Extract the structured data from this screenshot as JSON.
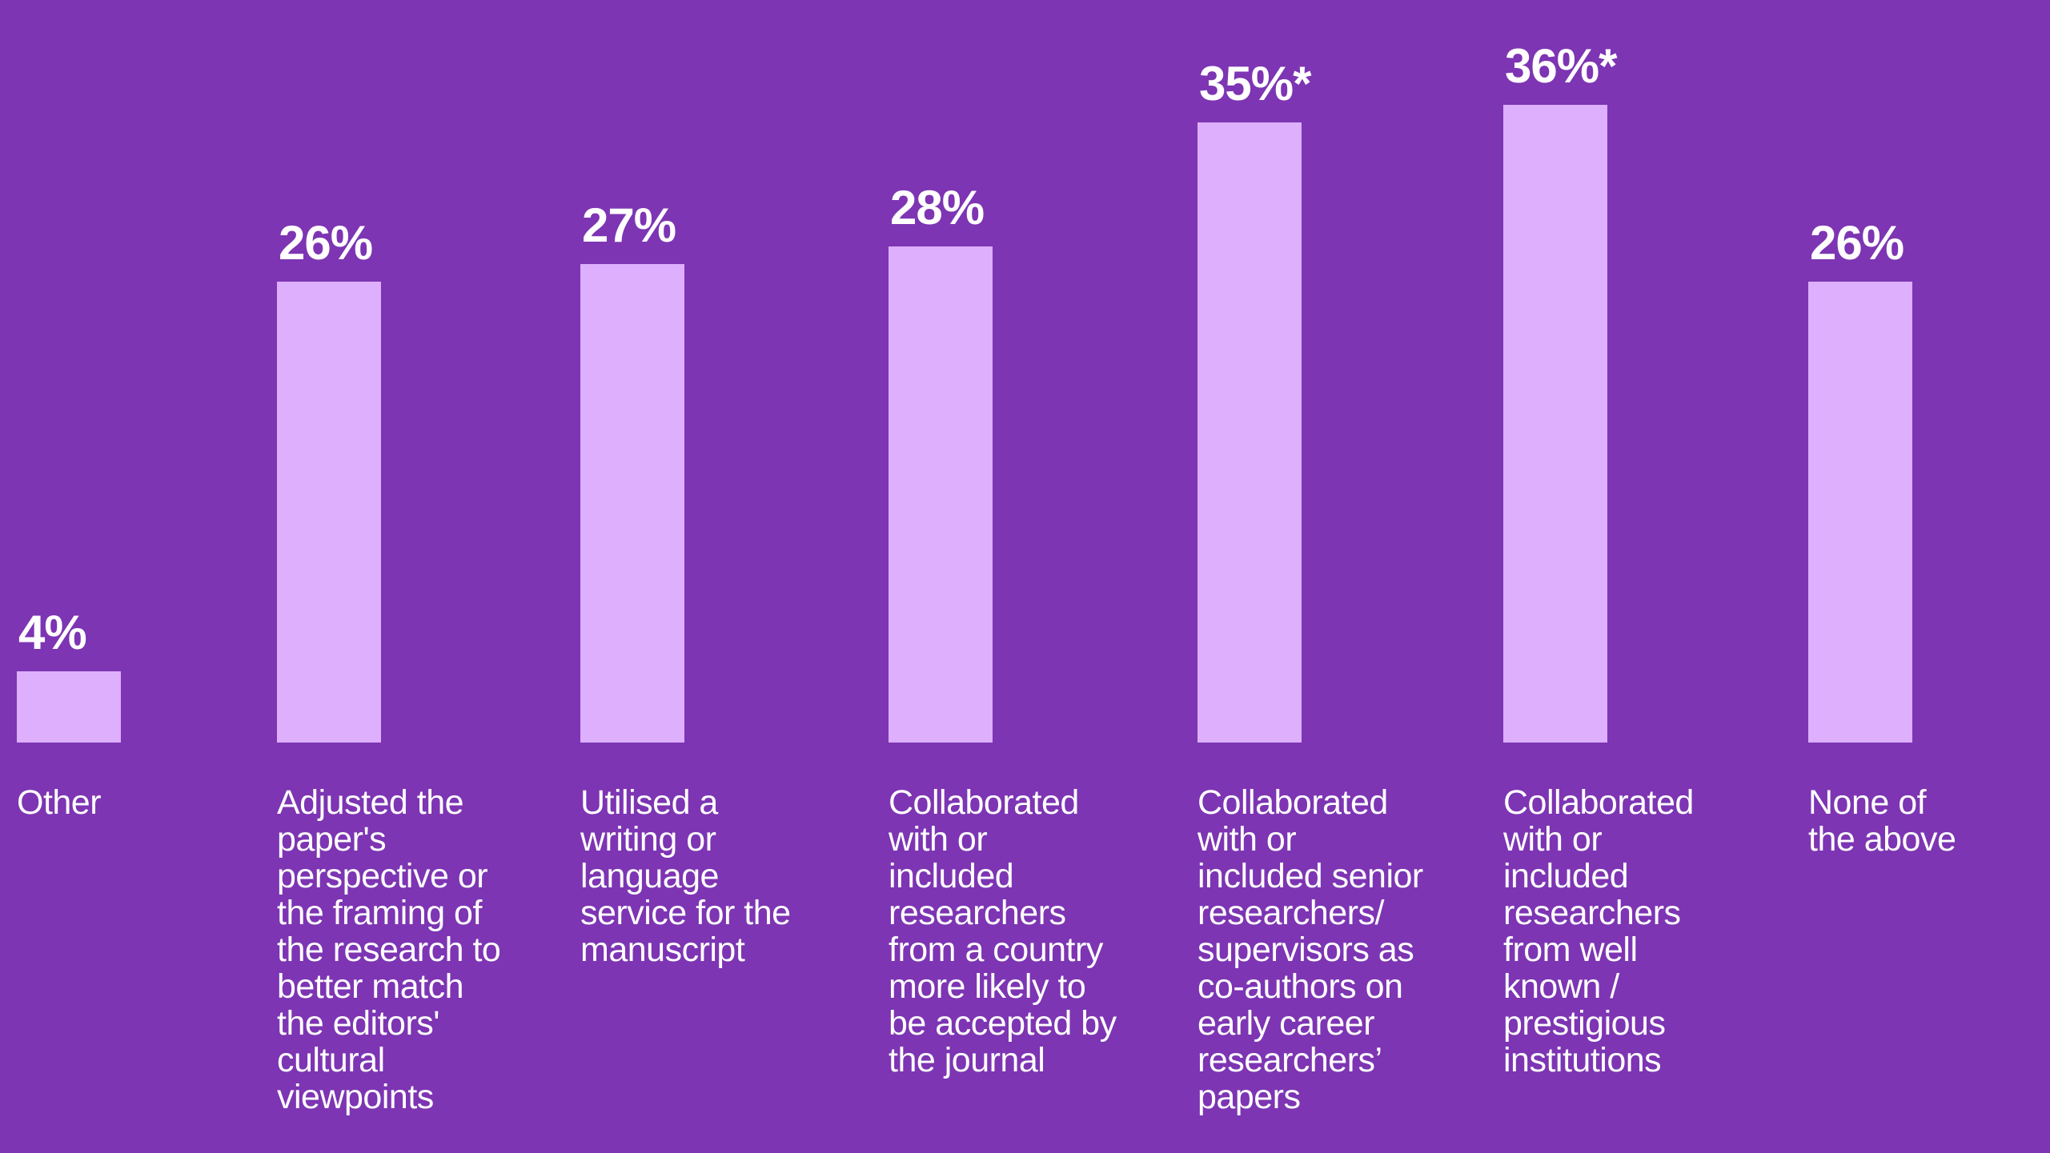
{
  "chart_data": {
    "type": "bar",
    "title": "",
    "xlabel": "",
    "ylabel": "",
    "ylim": [
      0,
      36
    ],
    "grid": false,
    "colors": {
      "background": "#7d35b3",
      "bar": "#ddaffc",
      "text": "#ffffff"
    },
    "categories": [
      [
        "Other"
      ],
      [
        "Adjusted the",
        "paper's",
        "perspective or",
        "the framing of",
        "the research to",
        "better match",
        "the editors'",
        "cultural",
        "viewpoints"
      ],
      [
        "Utilised a",
        "writing or",
        "language",
        "service for the",
        "manuscript"
      ],
      [
        "Collaborated",
        "with or",
        "included",
        "researchers",
        "from a country",
        "more likely to",
        "be accepted by",
        "the journal"
      ],
      [
        "Collaborated",
        "with or",
        "included senior",
        "researchers/",
        "supervisors as",
        "co-authors on",
        "early career",
        "researchers’",
        "papers"
      ],
      [
        "Collaborated",
        "with or",
        "included",
        "researchers",
        "from well",
        "known /",
        "prestigious",
        "institutions"
      ],
      [
        "None of",
        "the above"
      ]
    ],
    "values": [
      4,
      26,
      27,
      28,
      35,
      36,
      26
    ],
    "data_labels": [
      "4%",
      "26%",
      "27%",
      "28%",
      "35%*",
      "36%*",
      "26%"
    ]
  }
}
